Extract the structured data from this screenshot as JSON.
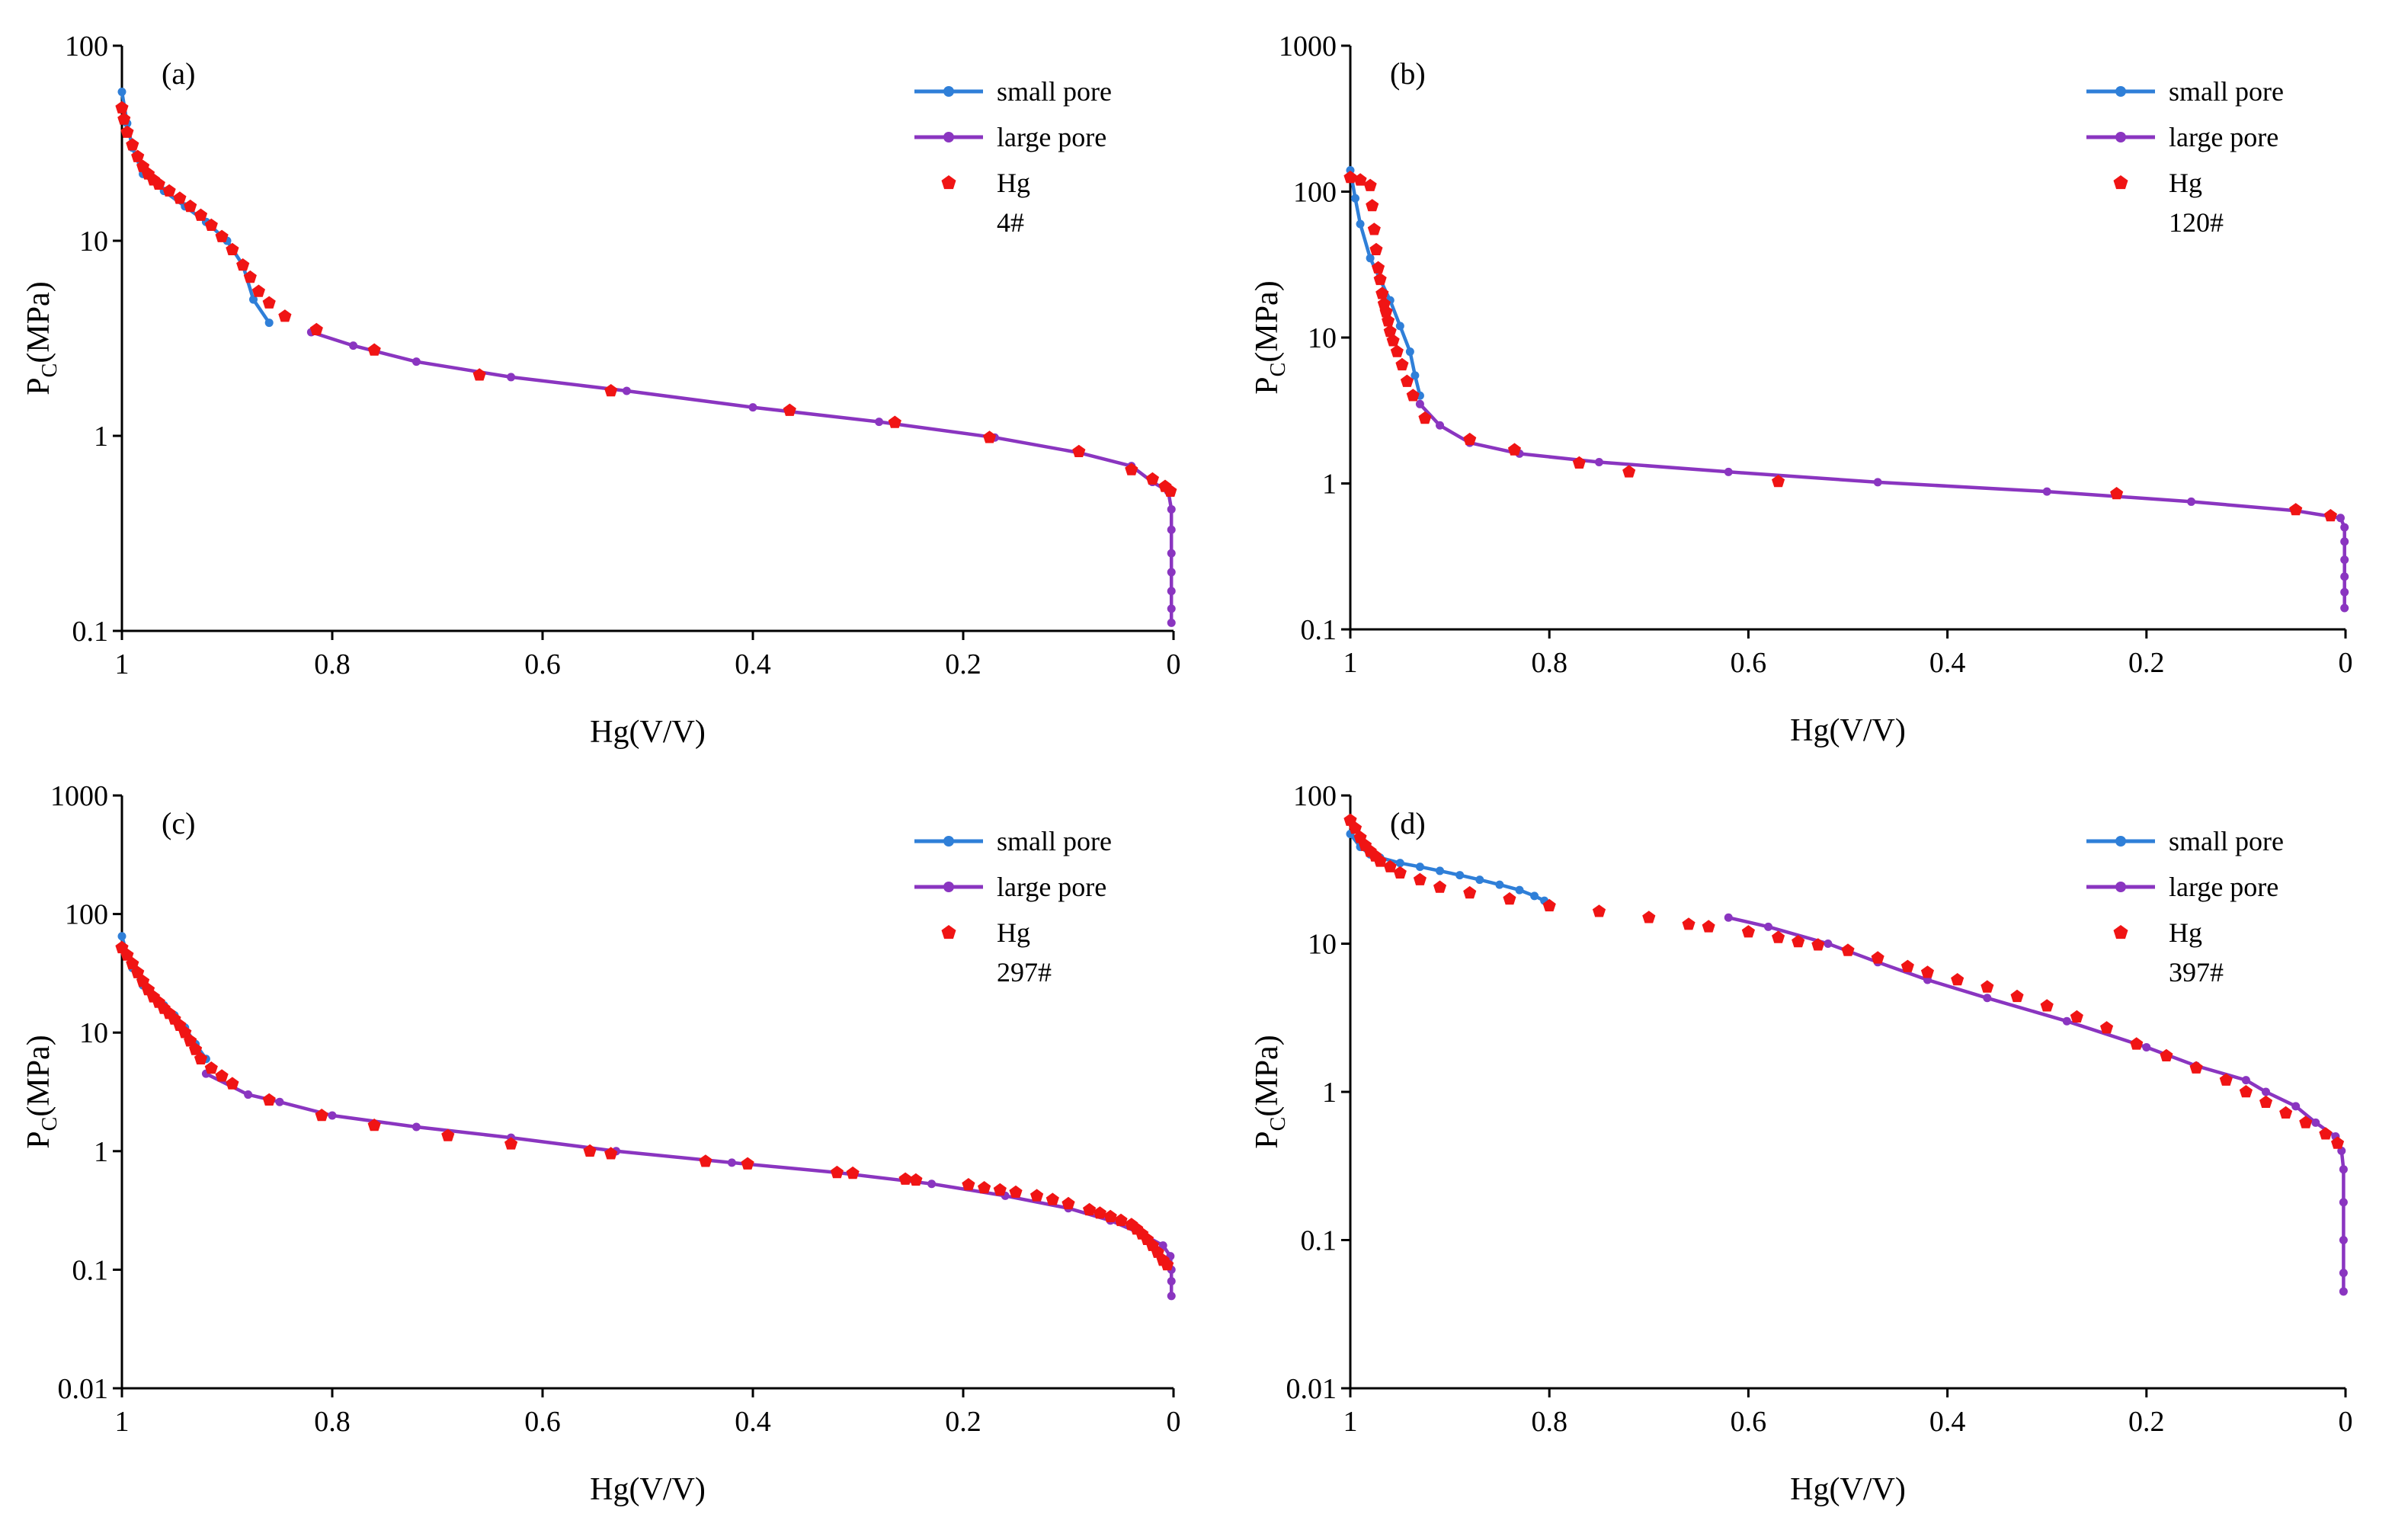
{
  "colors": {
    "small_pore": "#2f7fd8",
    "large_pore": "#8a35c0",
    "hg": "#f01414"
  },
  "chart_data": [
    {
      "type": "line",
      "panel": "(a)",
      "sample": "4#",
      "xlabel": "Hg(V/V)",
      "ylabel": "P",
      "ylabel_sub": "C",
      "ylabel_unit": "(MPa)",
      "x_reversed": true,
      "xlim": [
        1,
        0
      ],
      "ylim": [
        0.1,
        100
      ],
      "yscale": "log",
      "x_ticks": [
        "1",
        "0.8",
        "0.6",
        "0.4",
        "0.2",
        "0"
      ],
      "y_ticks": [
        "0.1",
        "1",
        "10",
        "100"
      ],
      "legend_position": "top-right",
      "series": [
        {
          "name": "small pore",
          "style": "line-marker",
          "color": "#2f7fd8",
          "x": [
            1.0,
            0.995,
            0.99,
            0.98,
            0.96,
            0.94,
            0.92,
            0.9,
            0.885,
            0.875,
            0.86
          ],
          "y": [
            58,
            40,
            30,
            22,
            18,
            15,
            12.5,
            10,
            7.5,
            5.0,
            3.8
          ]
        },
        {
          "name": "large pore",
          "style": "line-marker",
          "color": "#8a35c0",
          "x": [
            0.82,
            0.78,
            0.72,
            0.63,
            0.52,
            0.4,
            0.28,
            0.17,
            0.09,
            0.04,
            0.02,
            0.005,
            0.002,
            0.002,
            0.002,
            0.002,
            0.002,
            0.002,
            0.002
          ],
          "y": [
            3.4,
            2.9,
            2.4,
            2.0,
            1.7,
            1.4,
            1.18,
            0.98,
            0.82,
            0.7,
            0.58,
            0.52,
            0.42,
            0.33,
            0.25,
            0.2,
            0.16,
            0.13,
            0.11
          ]
        },
        {
          "name": "Hg",
          "style": "marker",
          "color": "#f01414",
          "x": [
            1.0,
            0.998,
            0.995,
            0.99,
            0.985,
            0.98,
            0.975,
            0.97,
            0.965,
            0.955,
            0.945,
            0.935,
            0.925,
            0.915,
            0.905,
            0.895,
            0.885,
            0.878,
            0.87,
            0.86,
            0.845,
            0.815,
            0.76,
            0.66,
            0.535,
            0.365,
            0.265,
            0.175,
            0.09,
            0.04,
            0.02,
            0.008,
            0.003
          ],
          "y": [
            48,
            42,
            36,
            31,
            27,
            24,
            22,
            20.5,
            19.5,
            18,
            16.5,
            15,
            13.5,
            12,
            10.5,
            9,
            7.5,
            6.5,
            5.5,
            4.8,
            4.1,
            3.5,
            2.75,
            2.05,
            1.7,
            1.35,
            1.17,
            0.98,
            0.83,
            0.67,
            0.6,
            0.55,
            0.52
          ]
        }
      ]
    },
    {
      "type": "line",
      "panel": "(b)",
      "sample": "120#",
      "xlabel": "Hg(V/V)",
      "ylabel": "P",
      "ylabel_sub": "C",
      "ylabel_unit": "(MPa)",
      "x_reversed": true,
      "xlim": [
        1,
        0
      ],
      "ylim": [
        0.1,
        1000
      ],
      "yscale": "log",
      "x_ticks": [
        "1",
        "0.8",
        "0.6",
        "0.4",
        "0.2",
        "0"
      ],
      "y_ticks": [
        "0.1",
        "1",
        "10",
        "100",
        "1000"
      ],
      "legend_position": "top-right",
      "series": [
        {
          "name": "small pore",
          "style": "line-marker",
          "color": "#2f7fd8",
          "x": [
            1.0,
            0.995,
            0.99,
            0.98,
            0.97,
            0.96,
            0.95,
            0.94,
            0.935,
            0.93
          ],
          "y": [
            140,
            90,
            60,
            35,
            25,
            18,
            12,
            8,
            5.5,
            4
          ]
        },
        {
          "name": "large pore",
          "style": "line-marker",
          "color": "#8a35c0",
          "x": [
            0.93,
            0.91,
            0.88,
            0.83,
            0.75,
            0.62,
            0.47,
            0.3,
            0.155,
            0.05,
            0.005,
            0.001,
            0.001,
            0.001,
            0.001,
            0.001,
            0.001
          ],
          "y": [
            3.5,
            2.5,
            1.9,
            1.6,
            1.4,
            1.2,
            1.02,
            0.88,
            0.75,
            0.65,
            0.58,
            0.5,
            0.4,
            0.3,
            0.23,
            0.18,
            0.14
          ]
        },
        {
          "name": "Hg",
          "style": "marker",
          "color": "#f01414",
          "x": [
            1.0,
            0.99,
            0.98,
            0.978,
            0.976,
            0.974,
            0.972,
            0.97,
            0.968,
            0.966,
            0.964,
            0.962,
            0.96,
            0.957,
            0.953,
            0.948,
            0.943,
            0.937,
            0.925,
            0.88,
            0.835,
            0.77,
            0.72,
            0.57,
            0.23,
            0.05,
            0.015
          ],
          "y": [
            125,
            120,
            110,
            80,
            55,
            40,
            30,
            25,
            20,
            17,
            15,
            13,
            11,
            9.5,
            8,
            6.5,
            5,
            4,
            2.8,
            2.0,
            1.7,
            1.38,
            1.2,
            1.03,
            0.85,
            0.66,
            0.6
          ]
        }
      ]
    },
    {
      "type": "line",
      "panel": "(c)",
      "sample": "297#",
      "xlabel": "Hg(V/V)",
      "ylabel": "P",
      "ylabel_sub": "C",
      "ylabel_unit": "(MPa)",
      "x_reversed": true,
      "xlim": [
        1,
        0
      ],
      "ylim": [
        0.01,
        1000
      ],
      "yscale": "log",
      "x_ticks": [
        "1",
        "0.8",
        "0.6",
        "0.4",
        "0.2",
        "0"
      ],
      "y_ticks": [
        "0.01",
        "0.1",
        "1",
        "10",
        "100",
        "1000"
      ],
      "legend_position": "top-right",
      "series": [
        {
          "name": "small pore",
          "style": "line-marker",
          "color": "#2f7fd8",
          "x": [
            1.0,
            0.995,
            0.99,
            0.98,
            0.97,
            0.96,
            0.95,
            0.94,
            0.93,
            0.92
          ],
          "y": [
            65,
            45,
            35,
            25,
            20,
            17,
            14,
            11,
            8,
            6
          ]
        },
        {
          "name": "large pore",
          "style": "line-marker",
          "color": "#8a35c0",
          "x": [
            0.92,
            0.88,
            0.85,
            0.8,
            0.72,
            0.63,
            0.53,
            0.42,
            0.32,
            0.23,
            0.16,
            0.1,
            0.06,
            0.03,
            0.01,
            0.003,
            0.002,
            0.002,
            0.002
          ],
          "y": [
            4.5,
            3.0,
            2.6,
            2.0,
            1.6,
            1.3,
            1.0,
            0.8,
            0.66,
            0.53,
            0.42,
            0.33,
            0.26,
            0.2,
            0.16,
            0.13,
            0.1,
            0.08,
            0.06
          ]
        },
        {
          "name": "Hg",
          "style": "marker",
          "color": "#f01414",
          "x": [
            1.0,
            0.995,
            0.99,
            0.985,
            0.98,
            0.975,
            0.97,
            0.965,
            0.96,
            0.955,
            0.95,
            0.945,
            0.94,
            0.935,
            0.93,
            0.925,
            0.915,
            0.905,
            0.895,
            0.86,
            0.81,
            0.76,
            0.69,
            0.63,
            0.555,
            0.535,
            0.445,
            0.405,
            0.32,
            0.305,
            0.255,
            0.245,
            0.195,
            0.18,
            0.165,
            0.15,
            0.13,
            0.115,
            0.1,
            0.08,
            0.07,
            0.06,
            0.05,
            0.04,
            0.035,
            0.03,
            0.025,
            0.02,
            0.015,
            0.01,
            0.006
          ],
          "y": [
            52,
            45,
            38,
            32,
            27,
            23,
            20,
            18,
            16,
            14.5,
            13,
            11.5,
            10,
            8.5,
            7.2,
            6,
            5,
            4.3,
            3.7,
            2.7,
            2.0,
            1.65,
            1.35,
            1.15,
            1.0,
            0.95,
            0.82,
            0.78,
            0.66,
            0.65,
            0.58,
            0.57,
            0.52,
            0.49,
            0.47,
            0.45,
            0.42,
            0.39,
            0.36,
            0.32,
            0.3,
            0.28,
            0.26,
            0.24,
            0.22,
            0.2,
            0.18,
            0.16,
            0.14,
            0.12,
            0.11
          ]
        }
      ]
    },
    {
      "type": "line",
      "panel": "(d)",
      "sample": "397#",
      "xlabel": "Hg(V/V)",
      "ylabel": "P",
      "ylabel_sub": "C",
      "ylabel_unit": "(MPa)",
      "x_reversed": true,
      "xlim": [
        1,
        0
      ],
      "ylim": [
        0.01,
        100
      ],
      "yscale": "log",
      "x_ticks": [
        "1",
        "0.8",
        "0.6",
        "0.4",
        "0.2",
        "0"
      ],
      "y_ticks": [
        "0.01",
        "0.1",
        "1",
        "10",
        "100"
      ],
      "legend_position": "top-right",
      "series": [
        {
          "name": "small pore",
          "style": "line-marker",
          "color": "#2f7fd8",
          "x": [
            1.0,
            0.99,
            0.98,
            0.97,
            0.95,
            0.93,
            0.91,
            0.89,
            0.87,
            0.85,
            0.83,
            0.815,
            0.805,
            0.8
          ],
          "y": [
            55,
            45,
            40,
            38,
            35,
            33,
            31,
            29,
            27,
            25,
            23,
            21,
            19.5,
            18
          ]
        },
        {
          "name": "large pore",
          "style": "line-marker",
          "color": "#8a35c0",
          "x": [
            0.62,
            0.58,
            0.52,
            0.47,
            0.42,
            0.36,
            0.28,
            0.2,
            0.15,
            0.1,
            0.08,
            0.05,
            0.03,
            0.01,
            0.004,
            0.002,
            0.002,
            0.002,
            0.002,
            0.002
          ],
          "y": [
            15,
            13,
            10,
            7.5,
            5.7,
            4.3,
            3.0,
            2.0,
            1.5,
            1.2,
            1.0,
            0.8,
            0.62,
            0.5,
            0.4,
            0.3,
            0.18,
            0.1,
            0.06,
            0.045
          ]
        },
        {
          "name": "Hg",
          "style": "marker",
          "color": "#f01414",
          "x": [
            1.0,
            0.995,
            0.99,
            0.985,
            0.98,
            0.975,
            0.97,
            0.96,
            0.95,
            0.93,
            0.91,
            0.88,
            0.84,
            0.8,
            0.75,
            0.7,
            0.66,
            0.64,
            0.6,
            0.57,
            0.55,
            0.53,
            0.5,
            0.47,
            0.44,
            0.42,
            0.39,
            0.36,
            0.33,
            0.3,
            0.27,
            0.24,
            0.21,
            0.18,
            0.15,
            0.12,
            0.1,
            0.08,
            0.06,
            0.04,
            0.02,
            0.008
          ],
          "y": [
            68,
            60,
            52,
            46,
            42,
            39,
            36,
            33,
            30,
            27,
            24,
            22,
            20,
            18,
            16.5,
            15,
            13.5,
            13,
            12,
            11,
            10.3,
            9.8,
            9,
            8,
            7,
            6.4,
            5.7,
            5.1,
            4.4,
            3.8,
            3.2,
            2.7,
            2.1,
            1.75,
            1.45,
            1.2,
            1.0,
            0.85,
            0.72,
            0.62,
            0.52,
            0.45
          ]
        }
      ]
    }
  ]
}
